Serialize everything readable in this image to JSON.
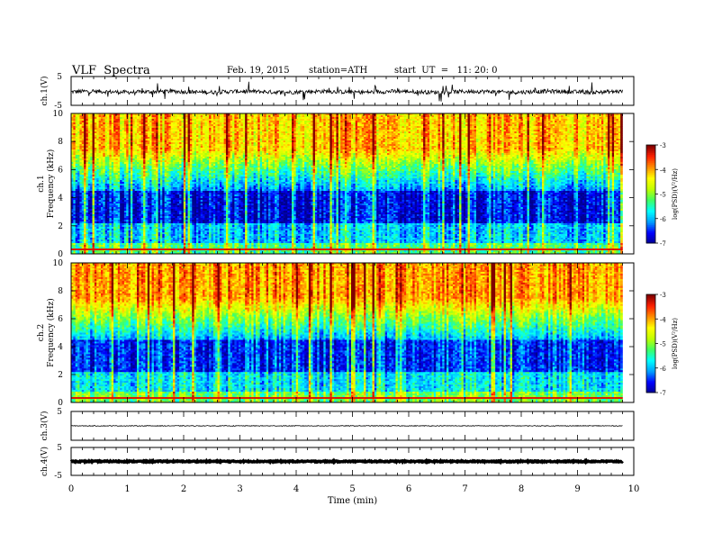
{
  "header": {
    "title": "VLF  Spectra",
    "date": "Feb. 19, 2015",
    "station": "station=ATH",
    "start": "start  UT  =   11: 20: 0"
  },
  "chart_data": [
    {
      "type": "line",
      "ylabel": "ch.1(V)",
      "xlim": [
        0,
        10
      ],
      "ylim": [
        -5,
        5
      ],
      "yticks": [
        "5",
        "-5"
      ],
      "baseline": -0.3,
      "data_end": 9.8
    },
    {
      "type": "heatmap",
      "ylabel": "ch.1",
      "ylabel2": "Frequency  (kHz)",
      "xlim": [
        0,
        10
      ],
      "ylim": [
        0,
        10
      ],
      "yticks": [
        "0",
        "2",
        "4",
        "6",
        "8",
        "10"
      ],
      "colorbar": {
        "label": "log(PSD)(V²/Hz)",
        "ticks": [
          "-3",
          "-4",
          "-5",
          "-6",
          "-7"
        ],
        "range": [
          -7,
          -3
        ]
      }
    },
    {
      "type": "heatmap",
      "ylabel": "ch.2",
      "ylabel2": "Frequency  (kHz)",
      "xlim": [
        0,
        10
      ],
      "ylim": [
        0,
        10
      ],
      "yticks": [
        "0",
        "2",
        "4",
        "6",
        "8",
        "10"
      ],
      "colorbar": {
        "label": "log(PSD)(V²/Hz)",
        "ticks": [
          "-3",
          "-4",
          "-5",
          "-6",
          "-7"
        ],
        "range": [
          -7,
          -3
        ]
      }
    },
    {
      "type": "line",
      "ylabel": "ch.3(V)",
      "xlim": [
        0,
        10
      ],
      "ylim": [
        -5,
        5
      ],
      "yticks": [
        "5"
      ],
      "baseline": 0,
      "data_end": 9.8
    },
    {
      "type": "line",
      "ylabel": "ch.4(V)",
      "xlim": [
        0,
        10
      ],
      "ylim": [
        -5,
        5
      ],
      "yticks": [
        "5",
        "-5"
      ],
      "baseline": 0,
      "data_end": 9.8
    }
  ],
  "xaxis": {
    "label": "Time  (min)",
    "ticks": [
      "0",
      "1",
      "2",
      "3",
      "4",
      "5",
      "6",
      "7",
      "8",
      "9",
      "10"
    ]
  },
  "colors": {
    "jet": [
      "#00008f",
      "#0000ff",
      "#00a0ff",
      "#00ffff",
      "#40ff60",
      "#c0ff00",
      "#ffff00",
      "#ff9000",
      "#ff2000",
      "#800000"
    ]
  }
}
